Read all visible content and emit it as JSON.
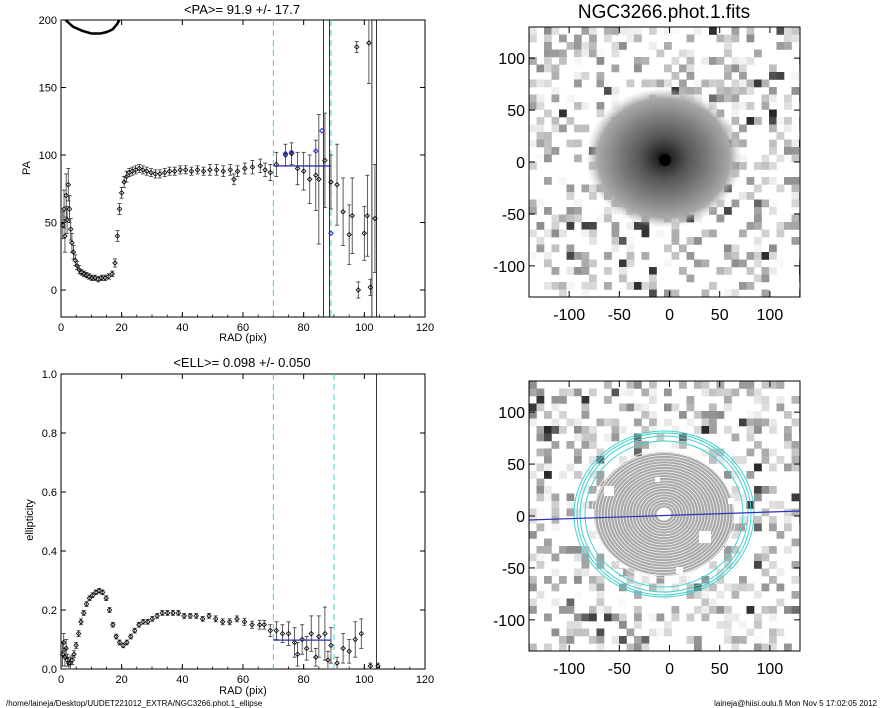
{
  "chart_data": [
    {
      "id": "pa",
      "type": "scatter",
      "title": "<PA>=  91.9 +/-  17.7",
      "xlabel": "RAD (pix)",
      "ylabel": "PA",
      "xlim": [
        0,
        120
      ],
      "ylim": [
        -20,
        200
      ],
      "xticks": [
        "0",
        "20",
        "40",
        "60",
        "80",
        "100",
        "120"
      ],
      "yticks": [
        "0",
        "50",
        "100",
        "150",
        "200"
      ],
      "vlines_cyan": [
        70,
        89
      ],
      "vlines_black": [
        86.5,
        88.5,
        102.5,
        104
      ],
      "fit_line": {
        "x": [
          70,
          89
        ],
        "y": [
          91.9,
          91.9
        ],
        "color": "#3030b0"
      },
      "blue_points": [
        {
          "x": 74,
          "y": 101
        },
        {
          "x": 76,
          "y": 102
        },
        {
          "x": 84,
          "y": 103
        },
        {
          "x": 86,
          "y": 118
        },
        {
          "x": 89,
          "y": 42
        }
      ],
      "points": [
        {
          "x": 0.6,
          "y": 48,
          "e": 10
        },
        {
          "x": 1.0,
          "y": 60,
          "e": 14
        },
        {
          "x": 1.3,
          "y": 40,
          "e": 12
        },
        {
          "x": 1.7,
          "y": 70,
          "e": 16
        },
        {
          "x": 2.0,
          "y": 52,
          "e": 10
        },
        {
          "x": 2.4,
          "y": 78,
          "e": 12
        },
        {
          "x": 2.8,
          "y": 60,
          "e": 10
        },
        {
          "x": 3.2,
          "y": 45,
          "e": 8
        },
        {
          "x": 3.6,
          "y": 35,
          "e": 7
        },
        {
          "x": 4.1,
          "y": 28,
          "e": 5
        },
        {
          "x": 4.7,
          "y": 22,
          "e": 4
        },
        {
          "x": 5.3,
          "y": 18,
          "e": 3
        },
        {
          "x": 6.0,
          "y": 15,
          "e": 3
        },
        {
          "x": 6.8,
          "y": 13,
          "e": 2
        },
        {
          "x": 7.6,
          "y": 12,
          "e": 2
        },
        {
          "x": 8.4,
          "y": 11,
          "e": 2
        },
        {
          "x": 9.3,
          "y": 10,
          "e": 2
        },
        {
          "x": 10.2,
          "y": 9,
          "e": 2
        },
        {
          "x": 11.2,
          "y": 9,
          "e": 2
        },
        {
          "x": 12.3,
          "y": 8,
          "e": 2
        },
        {
          "x": 13.4,
          "y": 9,
          "e": 2
        },
        {
          "x": 14.5,
          "y": 9,
          "e": 2
        },
        {
          "x": 15.7,
          "y": 10,
          "e": 2
        },
        {
          "x": 16.9,
          "y": 12,
          "e": 2
        },
        {
          "x": 17.8,
          "y": 20,
          "e": 3
        },
        {
          "x": 18.6,
          "y": 40,
          "e": 4
        },
        {
          "x": 19.3,
          "y": 60,
          "e": 4
        },
        {
          "x": 20.0,
          "y": 72,
          "e": 4
        },
        {
          "x": 20.8,
          "y": 80,
          "e": 4
        },
        {
          "x": 21.6,
          "y": 84,
          "e": 4
        },
        {
          "x": 22.5,
          "y": 87,
          "e": 3
        },
        {
          "x": 23.5,
          "y": 88,
          "e": 3
        },
        {
          "x": 24.6,
          "y": 89,
          "e": 3
        },
        {
          "x": 25.8,
          "y": 90,
          "e": 3
        },
        {
          "x": 27.0,
          "y": 89,
          "e": 3
        },
        {
          "x": 28.3,
          "y": 88,
          "e": 3
        },
        {
          "x": 29.7,
          "y": 87,
          "e": 3
        },
        {
          "x": 31.1,
          "y": 86,
          "e": 3
        },
        {
          "x": 32.6,
          "y": 86,
          "e": 3
        },
        {
          "x": 34.2,
          "y": 87,
          "e": 3
        },
        {
          "x": 35.8,
          "y": 88,
          "e": 3
        },
        {
          "x": 37.5,
          "y": 88,
          "e": 3
        },
        {
          "x": 39.3,
          "y": 89,
          "e": 3
        },
        {
          "x": 41.1,
          "y": 89,
          "e": 3
        },
        {
          "x": 43.0,
          "y": 88,
          "e": 3
        },
        {
          "x": 45.0,
          "y": 89,
          "e": 3
        },
        {
          "x": 47.0,
          "y": 88,
          "e": 3
        },
        {
          "x": 49.1,
          "y": 89,
          "e": 4
        },
        {
          "x": 51.3,
          "y": 89,
          "e": 4
        },
        {
          "x": 53.5,
          "y": 88,
          "e": 4
        },
        {
          "x": 55.8,
          "y": 89,
          "e": 4
        },
        {
          "x": 57.0,
          "y": 82,
          "e": 4
        },
        {
          "x": 58.2,
          "y": 88,
          "e": 4
        },
        {
          "x": 60.6,
          "y": 90,
          "e": 4
        },
        {
          "x": 63.1,
          "y": 91,
          "e": 5
        },
        {
          "x": 65.7,
          "y": 92,
          "e": 5
        },
        {
          "x": 67.3,
          "y": 89,
          "e": 5
        },
        {
          "x": 69.0,
          "y": 87,
          "e": 6
        },
        {
          "x": 71.0,
          "y": 93,
          "e": 9
        },
        {
          "x": 74.0,
          "y": 100,
          "e": 8
        },
        {
          "x": 76.0,
          "y": 101,
          "e": 8
        },
        {
          "x": 78.0,
          "y": 90,
          "e": 12
        },
        {
          "x": 80.0,
          "y": 88,
          "e": 14
        },
        {
          "x": 82.0,
          "y": 82,
          "e": 18
        },
        {
          "x": 84.0,
          "y": 85,
          "e": 26
        },
        {
          "x": 85.0,
          "y": 82,
          "e": 48
        },
        {
          "x": 87.0,
          "y": 96,
          "e": 35
        },
        {
          "x": 89.0,
          "y": 80,
          "e": 20
        },
        {
          "x": 91.0,
          "y": 78,
          "e": 30
        },
        {
          "x": 93.0,
          "y": 58,
          "e": 25
        },
        {
          "x": 95.0,
          "y": 41,
          "e": 22
        },
        {
          "x": 96.0,
          "y": 55,
          "e": 28
        },
        {
          "x": 97.5,
          "y": 180,
          "e": 4
        },
        {
          "x": 98.0,
          "y": 0,
          "e": 6
        },
        {
          "x": 100.0,
          "y": 42,
          "e": 20
        },
        {
          "x": 101.0,
          "y": 55,
          "e": 30
        },
        {
          "x": 101.5,
          "y": 183,
          "e": 30
        },
        {
          "x": 102.0,
          "y": 2,
          "e": 6
        },
        {
          "x": 103.5,
          "y": 53,
          "e": 40
        }
      ],
      "wrapped_segment": {
        "x": [
          1.5,
          4,
          7,
          10,
          13,
          15,
          17,
          18.5,
          19.2
        ],
        "y": [
          200,
          195,
          192,
          190,
          190,
          191,
          193,
          197,
          200
        ]
      }
    },
    {
      "id": "ell",
      "type": "scatter",
      "title": "<ELL>= 0.098 +/-  0.050",
      "xlabel": "RAD (pix)",
      "ylabel": "ellipticity",
      "xlim": [
        0,
        120
      ],
      "ylim": [
        0,
        1.0
      ],
      "xticks": [
        "0",
        "20",
        "40",
        "60",
        "80",
        "100",
        "120"
      ],
      "yticks": [
        "0.0",
        "0.2",
        "0.4",
        "0.6",
        "0.8",
        "1.0"
      ],
      "vlines_cyan": [
        70,
        90
      ],
      "vlines_black": [
        104
      ],
      "fit_line": {
        "x": [
          70,
          89
        ],
        "y": [
          0.098,
          0.098
        ],
        "color": "#3030b0"
      },
      "points": [
        {
          "x": 0.5,
          "y": 0.05,
          "e": 0.04
        },
        {
          "x": 0.9,
          "y": 0.09,
          "e": 0.03
        },
        {
          "x": 1.3,
          "y": 0.04,
          "e": 0.03
        },
        {
          "x": 1.7,
          "y": 0.07,
          "e": 0.03
        },
        {
          "x": 2.1,
          "y": 0.03,
          "e": 0.02
        },
        {
          "x": 2.6,
          "y": 0.02,
          "e": 0.02
        },
        {
          "x": 3.1,
          "y": 0.02,
          "e": 0.02
        },
        {
          "x": 3.7,
          "y": 0.03,
          "e": 0.015
        },
        {
          "x": 4.3,
          "y": 0.05,
          "e": 0.012
        },
        {
          "x": 5.0,
          "y": 0.08,
          "e": 0.01
        },
        {
          "x": 5.8,
          "y": 0.12,
          "e": 0.01
        },
        {
          "x": 6.6,
          "y": 0.16,
          "e": 0.01
        },
        {
          "x": 7.5,
          "y": 0.19,
          "e": 0.008
        },
        {
          "x": 8.4,
          "y": 0.22,
          "e": 0.008
        },
        {
          "x": 9.4,
          "y": 0.24,
          "e": 0.008
        },
        {
          "x": 10.4,
          "y": 0.25,
          "e": 0.008
        },
        {
          "x": 11.5,
          "y": 0.26,
          "e": 0.008
        },
        {
          "x": 12.6,
          "y": 0.265,
          "e": 0.008
        },
        {
          "x": 13.7,
          "y": 0.26,
          "e": 0.008
        },
        {
          "x": 14.9,
          "y": 0.24,
          "e": 0.008
        },
        {
          "x": 16.0,
          "y": 0.2,
          "e": 0.008
        },
        {
          "x": 17.1,
          "y": 0.15,
          "e": 0.008
        },
        {
          "x": 18.2,
          "y": 0.11,
          "e": 0.008
        },
        {
          "x": 19.3,
          "y": 0.09,
          "e": 0.008
        },
        {
          "x": 20.5,
          "y": 0.08,
          "e": 0.008
        },
        {
          "x": 21.7,
          "y": 0.09,
          "e": 0.008
        },
        {
          "x": 23.0,
          "y": 0.11,
          "e": 0.008
        },
        {
          "x": 24.3,
          "y": 0.13,
          "e": 0.008
        },
        {
          "x": 25.7,
          "y": 0.15,
          "e": 0.008
        },
        {
          "x": 27.1,
          "y": 0.16,
          "e": 0.008
        },
        {
          "x": 28.6,
          "y": 0.16,
          "e": 0.008
        },
        {
          "x": 30.1,
          "y": 0.17,
          "e": 0.008
        },
        {
          "x": 31.7,
          "y": 0.18,
          "e": 0.008
        },
        {
          "x": 33.4,
          "y": 0.19,
          "e": 0.008
        },
        {
          "x": 35.1,
          "y": 0.19,
          "e": 0.008
        },
        {
          "x": 36.9,
          "y": 0.19,
          "e": 0.008
        },
        {
          "x": 38.7,
          "y": 0.19,
          "e": 0.008
        },
        {
          "x": 40.6,
          "y": 0.18,
          "e": 0.008
        },
        {
          "x": 42.6,
          "y": 0.18,
          "e": 0.008
        },
        {
          "x": 44.6,
          "y": 0.18,
          "e": 0.008
        },
        {
          "x": 46.7,
          "y": 0.17,
          "e": 0.008
        },
        {
          "x": 48.8,
          "y": 0.18,
          "e": 0.008
        },
        {
          "x": 51.0,
          "y": 0.17,
          "e": 0.01
        },
        {
          "x": 53.3,
          "y": 0.16,
          "e": 0.01
        },
        {
          "x": 55.6,
          "y": 0.16,
          "e": 0.01
        },
        {
          "x": 58.0,
          "y": 0.17,
          "e": 0.01
        },
        {
          "x": 60.5,
          "y": 0.16,
          "e": 0.012
        },
        {
          "x": 63.0,
          "y": 0.15,
          "e": 0.012
        },
        {
          "x": 65.5,
          "y": 0.15,
          "e": 0.015
        },
        {
          "x": 67.0,
          "y": 0.15,
          "e": 0.015
        },
        {
          "x": 69.0,
          "y": 0.13,
          "e": 0.02
        },
        {
          "x": 71.0,
          "y": 0.13,
          "e": 0.03
        },
        {
          "x": 73.0,
          "y": 0.12,
          "e": 0.03
        },
        {
          "x": 75.0,
          "y": 0.12,
          "e": 0.04
        },
        {
          "x": 77.0,
          "y": 0.09,
          "e": 0.05
        },
        {
          "x": 78.0,
          "y": 0.05,
          "e": 0.04
        },
        {
          "x": 79.5,
          "y": 0.1,
          "e": 0.05
        },
        {
          "x": 81.0,
          "y": 0.07,
          "e": 0.04
        },
        {
          "x": 82.5,
          "y": 0.12,
          "e": 0.06
        },
        {
          "x": 84.0,
          "y": 0.04,
          "e": 0.03
        },
        {
          "x": 85.0,
          "y": 0.11,
          "e": 0.07
        },
        {
          "x": 87.0,
          "y": 0.12,
          "e": 0.09
        },
        {
          "x": 88.0,
          "y": 0.03,
          "e": 0.03
        },
        {
          "x": 89.0,
          "y": 0.08,
          "e": 0.06
        },
        {
          "x": 91.0,
          "y": 0.02,
          "e": 0.02
        },
        {
          "x": 93.0,
          "y": 0.07,
          "e": 0.05
        },
        {
          "x": 95.0,
          "y": 0.06,
          "e": 0.04
        },
        {
          "x": 97.0,
          "y": 0.1,
          "e": 0.06
        },
        {
          "x": 99.0,
          "y": 0.12,
          "e": 0.05
        },
        {
          "x": 102.0,
          "y": 0.01,
          "e": 0.01
        },
        {
          "x": 104.5,
          "y": 0.01,
          "e": 0.01
        }
      ]
    }
  ],
  "image_top": {
    "title": "NGC3266.phot.1.fits",
    "xticks": [
      "-100",
      "-50",
      "0",
      "50",
      "100"
    ],
    "yticks": [
      "100",
      "50",
      "0",
      "-50",
      "-100"
    ],
    "xlim": [
      -140,
      130
    ],
    "ylim": [
      -130,
      130
    ]
  },
  "image_bottom": {
    "xticks": [
      "-100",
      "-50",
      "0",
      "50",
      "100"
    ],
    "yticks": [
      "100",
      "50",
      "0",
      "-50",
      "-100"
    ],
    "xlim": [
      -140,
      130
    ],
    "ylim": [
      -130,
      130
    ],
    "ellipse_color": "#40d0d0",
    "axis_line_color": "#3030c0"
  },
  "footer": {
    "path": "/home/laineja/Desktop/UUDET221012_EXTRA/NGC3266.phot.1_ellipse",
    "user_date": "laineja@hiisi.oulu.fi  Mon Nov  5 17:02:05 2012"
  }
}
